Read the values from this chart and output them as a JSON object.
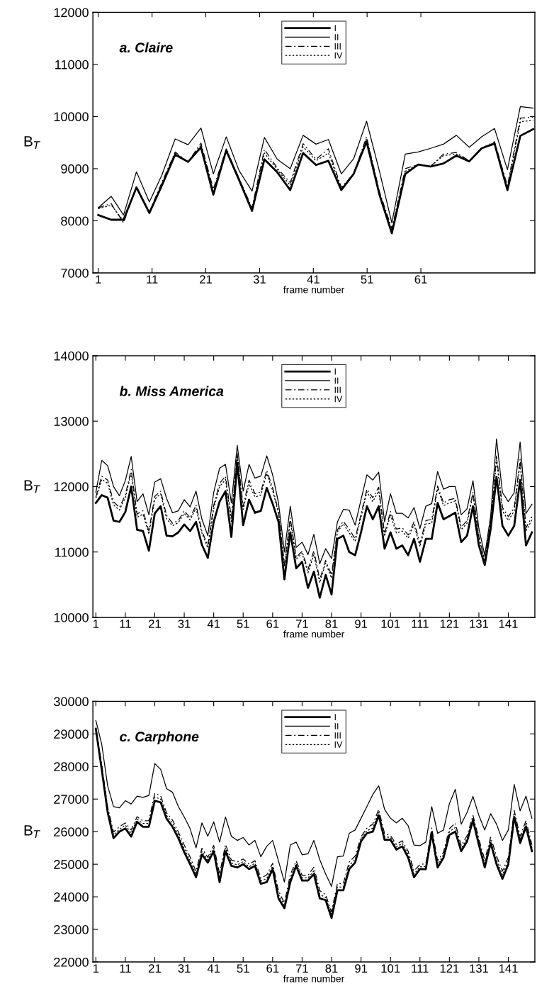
{
  "chart_data": [
    {
      "type": "line",
      "title": "a. Claire",
      "xlabel": "frame number",
      "ylabel": "B$_{T}$",
      "xlim": [
        0,
        82.2
      ],
      "xticks": [
        1,
        11,
        21,
        31,
        41,
        51,
        61
      ],
      "ylim": [
        7000,
        12000
      ],
      "yticks": [
        7000,
        8000,
        9000,
        10000,
        11000,
        12000
      ],
      "legend": "top",
      "grid": false,
      "marker": "none",
      "x": [
        1,
        3.4,
        5.7,
        8.1,
        10.5,
        12.8,
        15.3,
        17.7,
        20.1,
        22.4,
        24.8,
        27.2,
        29.6,
        31.9,
        34.3,
        36.7,
        39.1,
        41.5,
        43.8,
        46.2,
        48.5,
        50.9,
        53.3,
        55.6,
        58.1,
        60.5,
        62.8,
        65.2,
        67.6,
        70,
        72.3,
        74.7,
        77.1,
        79.5,
        81.9
      ],
      "series": [
        {
          "name": "I",
          "color": "#000000",
          "line_style": "solid",
          "values": [
            8110,
            8020,
            8020,
            8640,
            8150,
            8670,
            9270,
            9130,
            9410,
            8500,
            9350,
            8780,
            8190,
            9180,
            8930,
            8590,
            9300,
            9070,
            9150,
            8590,
            8900,
            9520,
            8500,
            7760,
            8900,
            9080,
            9040,
            9100,
            9250,
            9140,
            9390,
            9480,
            8590,
            9630,
            9760
          ]
        },
        {
          "name": "II",
          "color": "#000000",
          "line_style": "solid",
          "values": [
            8250,
            8470,
            8110,
            8940,
            8360,
            8870,
            9570,
            9460,
            9780,
            8900,
            9610,
            8960,
            8570,
            9600,
            9180,
            9000,
            9640,
            9470,
            9560,
            8900,
            9190,
            9910,
            8950,
            7960,
            9280,
            9320,
            9390,
            9470,
            9640,
            9410,
            9610,
            9770,
            8980,
            10190,
            10160
          ]
        },
        {
          "name": "III",
          "color": "#000000",
          "line_style": "dashdot",
          "values": [
            8250,
            8330,
            7960,
            8660,
            8170,
            8730,
            9320,
            9130,
            9490,
            8610,
            9380,
            8810,
            8250,
            9370,
            9010,
            8730,
            9480,
            9180,
            9380,
            8640,
            8900,
            9610,
            8560,
            7850,
            9000,
            9080,
            9040,
            9280,
            9310,
            9150,
            9390,
            9520,
            8670,
            9970,
            9990
          ]
        },
        {
          "name": "IV",
          "color": "#000000",
          "line_style": "dotted",
          "values": [
            8230,
            8300,
            8000,
            8650,
            8160,
            8700,
            9300,
            9120,
            9450,
            8560,
            9370,
            8800,
            8220,
            9300,
            8980,
            8680,
            9420,
            9150,
            9300,
            8620,
            8900,
            9580,
            8530,
            7800,
            8950,
            9080,
            9050,
            9250,
            9280,
            9150,
            9390,
            9500,
            8630,
            9900,
            9930
          ]
        }
      ]
    },
    {
      "type": "line",
      "title": "b. Miss America",
      "xlabel": "frame number",
      "ylabel": "B$_{T}$",
      "xlim": [
        0,
        150
      ],
      "xticks": [
        1,
        11,
        21,
        31,
        41,
        51,
        61,
        71,
        81,
        91,
        101,
        111,
        121,
        131,
        141
      ],
      "ylim": [
        10000,
        14000
      ],
      "yticks": [
        10000,
        11000,
        12000,
        13000,
        14000
      ],
      "legend": "top",
      "grid": false,
      "marker": "none",
      "x": [
        1,
        3,
        5,
        7,
        9,
        11,
        13,
        15,
        17,
        19,
        21,
        23,
        25,
        27,
        29,
        31,
        33,
        35,
        37,
        39,
        41,
        43,
        45,
        47,
        49,
        51,
        53,
        55,
        57,
        59,
        61,
        63,
        65,
        67,
        69,
        71,
        73,
        75,
        77,
        79,
        81,
        83,
        85,
        87,
        89,
        91,
        93,
        95,
        97,
        99,
        101,
        103,
        105,
        107,
        109,
        111,
        113,
        115,
        117,
        119,
        121,
        123,
        125,
        127,
        129,
        131,
        133,
        135,
        137,
        139,
        141,
        143,
        145,
        147,
        149
      ],
      "series": [
        {
          "name": "I",
          "color": "#000000",
          "line_style": "solid",
          "values": [
            11750,
            11870,
            11830,
            11480,
            11460,
            11610,
            12000,
            11340,
            11320,
            11020,
            11590,
            11700,
            11250,
            11240,
            11300,
            11420,
            11320,
            11460,
            11110,
            10910,
            11460,
            11770,
            11930,
            11230,
            12360,
            11410,
            11800,
            11600,
            11630,
            11980,
            11740,
            11460,
            10580,
            11300,
            10750,
            10850,
            10450,
            10700,
            10300,
            10650,
            10350,
            11200,
            11250,
            11000,
            10950,
            11300,
            11700,
            11500,
            11700,
            11050,
            11300,
            11050,
            11100,
            10950,
            11200,
            10850,
            11200,
            11200,
            11750,
            11500,
            11550,
            11600,
            11150,
            11250,
            11700,
            11100,
            10800,
            11350,
            12150,
            11400,
            11250,
            11400,
            12100,
            11100,
            11300
          ]
        },
        {
          "name": "II",
          "color": "#000000",
          "line_style": "solid",
          "values": [
            11910,
            12400,
            12320,
            12000,
            11860,
            12090,
            12460,
            11770,
            11890,
            11570,
            12070,
            12120,
            11820,
            11600,
            11630,
            11800,
            11690,
            11930,
            11500,
            11250,
            11910,
            12280,
            12340,
            11750,
            12630,
            11930,
            12340,
            12130,
            12160,
            12470,
            12180,
            11750,
            11000,
            11700,
            11070,
            11150,
            10960,
            11270,
            10820,
            11050,
            10900,
            11460,
            11650,
            11640,
            11410,
            11800,
            12180,
            12100,
            12220,
            11460,
            11890,
            11590,
            11590,
            11520,
            11680,
            11360,
            11700,
            11740,
            12230,
            11960,
            12000,
            12000,
            11570,
            11660,
            12090,
            11360,
            10950,
            11550,
            12730,
            11910,
            11770,
            11910,
            12680,
            11590,
            11730
          ]
        },
        {
          "name": "III",
          "color": "#000000",
          "line_style": "dashdot",
          "values": [
            11840,
            12160,
            12100,
            11770,
            11680,
            11870,
            12260,
            11580,
            11630,
            11320,
            11850,
            11930,
            11560,
            11440,
            11480,
            11630,
            11520,
            11720,
            11320,
            11100,
            11710,
            12050,
            12160,
            11520,
            12510,
            11700,
            12100,
            11890,
            11920,
            12250,
            11980,
            11620,
            10810,
            11520,
            10920,
            11010,
            10730,
            11020,
            10580,
            10870,
            10650,
            11340,
            11470,
            11350,
            11200,
            11580,
            11960,
            11830,
            11990,
            11280,
            11620,
            11350,
            11370,
            11260,
            11460,
            11130,
            11480,
            11500,
            12010,
            11750,
            11800,
            11820,
            11380,
            11480,
            11910,
            11240,
            10880,
            11460,
            12470,
            11680,
            11540,
            11680,
            12420,
            11370,
            11540
          ]
        },
        {
          "name": "IV",
          "color": "#000000",
          "line_style": "dotted",
          "values": [
            11820,
            12110,
            12050,
            11720,
            11640,
            11830,
            12210,
            11530,
            11580,
            11270,
            11810,
            11890,
            11510,
            11400,
            11450,
            11590,
            11490,
            11670,
            11290,
            11060,
            11660,
            12000,
            12110,
            11470,
            12480,
            11650,
            12040,
            11840,
            11870,
            12200,
            11940,
            11590,
            10770,
            11480,
            10890,
            10980,
            10680,
            10960,
            10530,
            10830,
            10600,
            11310,
            11430,
            11290,
            11160,
            11530,
            11920,
            11770,
            11930,
            11240,
            11570,
            11290,
            11320,
            11210,
            11420,
            11080,
            11430,
            11440,
            11970,
            11710,
            11750,
            11780,
            11340,
            11440,
            11880,
            11220,
            10870,
            11440,
            12410,
            11630,
            11480,
            11630,
            12360,
            11320,
            11490
          ]
        }
      ]
    },
    {
      "type": "line",
      "title": "c. Carphone",
      "xlabel": "frame number",
      "ylabel": "B$_{T}$",
      "xlim": [
        0,
        150
      ],
      "xticks": [
        1,
        11,
        21,
        31,
        41,
        51,
        61,
        71,
        81,
        91,
        101,
        111,
        121,
        131,
        141
      ],
      "ylim": [
        22000,
        30000
      ],
      "yticks": [
        22000,
        23000,
        24000,
        25000,
        26000,
        27000,
        28000,
        29000,
        30000
      ],
      "legend": "top",
      "grid": false,
      "marker": "none",
      "x": [
        1,
        3,
        5,
        7,
        9,
        11,
        13,
        15,
        17,
        19,
        21,
        23,
        25,
        27,
        29,
        31,
        33,
        35,
        37,
        39,
        41,
        43,
        45,
        47,
        49,
        51,
        53,
        55,
        57,
        59,
        61,
        63,
        65,
        67,
        69,
        71,
        73,
        75,
        77,
        79,
        81,
        83,
        85,
        87,
        89,
        91,
        93,
        95,
        97,
        99,
        101,
        103,
        105,
        107,
        109,
        111,
        113,
        115,
        117,
        119,
        121,
        123,
        125,
        127,
        129,
        131,
        133,
        135,
        137,
        139,
        141,
        143,
        145,
        147,
        149
      ],
      "series": [
        {
          "name": "I",
          "color": "#000000",
          "line_style": "solid",
          "values": [
            29150,
            27900,
            26600,
            25800,
            26000,
            26100,
            25850,
            26300,
            26150,
            26150,
            26950,
            26900,
            26400,
            26150,
            25800,
            25370,
            25000,
            24600,
            25300,
            25050,
            25400,
            24450,
            25400,
            24950,
            24900,
            25000,
            24850,
            24950,
            24400,
            24450,
            24850,
            23950,
            23650,
            24450,
            24950,
            24500,
            24500,
            24700,
            23950,
            23900,
            23350,
            24200,
            24200,
            24850,
            25050,
            25700,
            25950,
            26000,
            26500,
            25750,
            25750,
            25450,
            25550,
            25200,
            24600,
            24850,
            24850,
            25950,
            24900,
            25200,
            25900,
            26000,
            25400,
            25700,
            26350,
            25600,
            24900,
            25650,
            25000,
            24550,
            25000,
            26450,
            25650,
            26150,
            25400
          ]
        },
        {
          "name": "II",
          "color": "#000000",
          "line_style": "solid",
          "values": [
            29410,
            28680,
            27410,
            26770,
            26730,
            26950,
            26850,
            27090,
            27050,
            27110,
            28090,
            27910,
            27320,
            27210,
            26770,
            26450,
            26090,
            25500,
            26270,
            25860,
            26300,
            25680,
            26450,
            25860,
            25730,
            25820,
            25590,
            25730,
            25230,
            25550,
            25730,
            25100,
            24450,
            25590,
            25680,
            25290,
            25320,
            25730,
            25140,
            24700,
            24320,
            25230,
            25250,
            25950,
            26050,
            26410,
            26770,
            27140,
            27410,
            26680,
            26410,
            26270,
            26410,
            26180,
            25590,
            25570,
            25680,
            26770,
            25950,
            26050,
            26860,
            27300,
            26230,
            26590,
            27080,
            26500,
            26050,
            26550,
            26230,
            25730,
            26050,
            27450,
            26640,
            27090,
            26410
          ]
        },
        {
          "name": "III",
          "color": "#000000",
          "line_style": "dashdot",
          "values": [
            29200,
            28060,
            26760,
            25990,
            26150,
            26270,
            26050,
            26460,
            26330,
            26340,
            27180,
            27100,
            26580,
            26360,
            25990,
            25590,
            25220,
            24780,
            25490,
            25210,
            25580,
            24700,
            25610,
            25130,
            25070,
            25160,
            25000,
            25110,
            24570,
            24670,
            25030,
            24180,
            23810,
            24680,
            25100,
            24660,
            24660,
            24910,
            24190,
            24060,
            23540,
            24410,
            24410,
            25070,
            25250,
            25840,
            26110,
            26230,
            26680,
            25940,
            25880,
            25610,
            25720,
            25400,
            24800,
            24990,
            25020,
            26110,
            25110,
            25370,
            26090,
            26260,
            25570,
            25880,
            26500,
            25780,
            25130,
            25830,
            25250,
            24790,
            25210,
            26650,
            25850,
            26340,
            25600
          ]
        },
        {
          "name": "IV",
          "color": "#000000",
          "line_style": "dotted",
          "values": [
            29180,
            28000,
            26700,
            25900,
            26070,
            26200,
            25950,
            26380,
            26250,
            26250,
            27060,
            27000,
            26500,
            26260,
            25900,
            25480,
            25110,
            24690,
            25400,
            25130,
            25490,
            24570,
            25500,
            25040,
            24980,
            25080,
            24920,
            25030,
            24480,
            24560,
            24940,
            24070,
            23730,
            24560,
            25020,
            24580,
            24580,
            24800,
            24070,
            23980,
            23450,
            24300,
            24300,
            24960,
            25150,
            25770,
            26030,
            26110,
            26590,
            25840,
            25820,
            25530,
            25640,
            25300,
            24700,
            24920,
            24930,
            26030,
            25000,
            25290,
            26000,
            26130,
            25480,
            25790,
            26420,
            25690,
            25020,
            25740,
            25120,
            24670,
            25110,
            26550,
            25750,
            26240,
            25500
          ]
        }
      ]
    }
  ]
}
